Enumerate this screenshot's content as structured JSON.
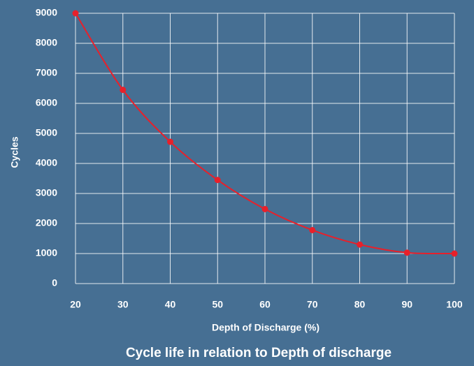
{
  "chart_data": {
    "type": "line",
    "title": "Cycle life in relation to Depth of discharge",
    "x_label": "Depth of Discharge (%)",
    "y_label": "Cycles",
    "x": [
      20,
      30,
      40,
      50,
      60,
      70,
      80,
      90,
      100
    ],
    "series": [
      {
        "name": "Cycles",
        "color": "#e8202a",
        "values": [
          9000,
          6450,
          4720,
          3450,
          2480,
          1780,
          1300,
          1030,
          1000
        ]
      }
    ],
    "xlim": [
      20,
      100
    ],
    "xticks": [
      20,
      30,
      40,
      50,
      60,
      70,
      80,
      90,
      100
    ],
    "ylim": [
      0,
      9000
    ],
    "yticks": [
      0,
      1000,
      2000,
      3000,
      4000,
      5000,
      6000,
      7000,
      8000,
      9000
    ],
    "grid": true
  }
}
